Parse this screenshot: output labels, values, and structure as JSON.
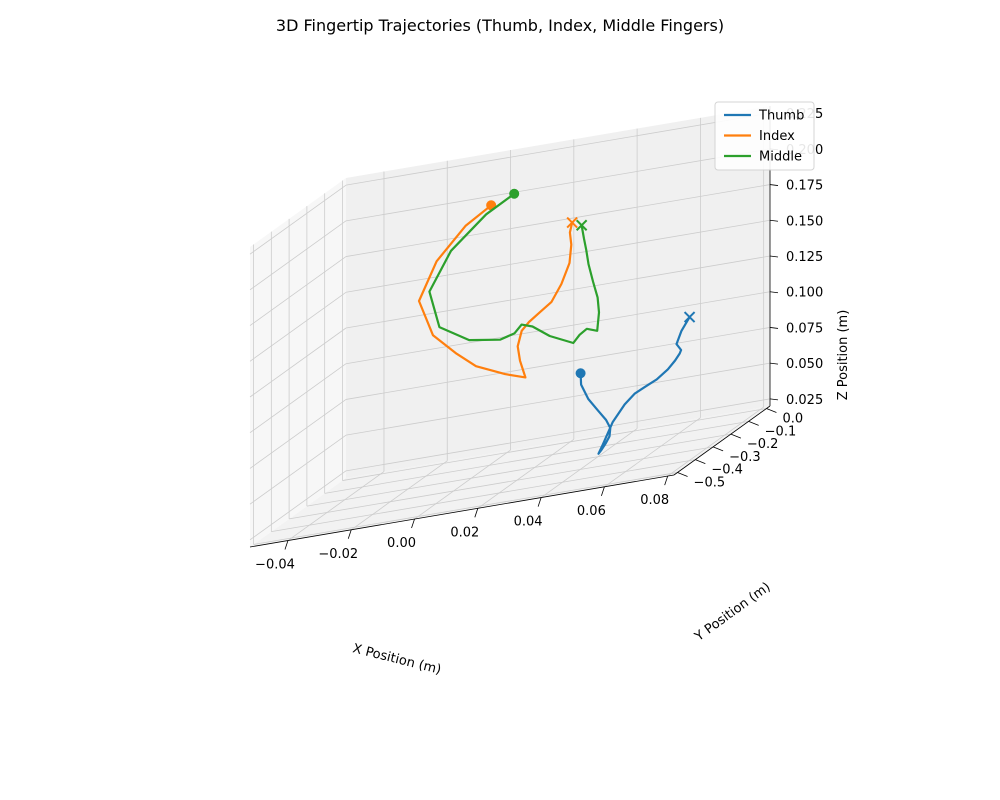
{
  "chart_data": {
    "type": "line",
    "projection": "3d",
    "title": "3D Fingertip Trajectories (Thumb, Index, Middle Fingers)",
    "xlabel": "X Position (m)",
    "ylabel": "Y Position (m)",
    "zlabel": "Z Position (m)",
    "xlim": [
      -0.052,
      0.082
    ],
    "ylim": [
      -0.52,
      0.02
    ],
    "zlim": [
      0.02,
      0.23
    ],
    "xticks": [
      -0.04,
      -0.02,
      0.0,
      0.02,
      0.04,
      0.06,
      0.08
    ],
    "xtick_labels": [
      "−0.04",
      "−0.02",
      "0.00",
      "0.02",
      "0.04",
      "0.06",
      "0.08"
    ],
    "yticks": [
      -0.5,
      -0.4,
      -0.3,
      -0.2,
      -0.1,
      0.0
    ],
    "ytick_labels": [
      "−0.5",
      "−0.4",
      "−0.3",
      "−0.2",
      "−0.1",
      "0.0"
    ],
    "zticks": [
      0.025,
      0.05,
      0.075,
      0.1,
      0.125,
      0.15,
      0.175,
      0.2,
      0.225
    ],
    "ztick_labels": [
      "0.025",
      "0.050",
      "0.075",
      "0.100",
      "0.125",
      "0.150",
      "0.175",
      "0.200",
      "0.225"
    ],
    "grid": true,
    "legend_position": "top-right",
    "series": [
      {
        "name": "Thumb",
        "color": "#1f77b4",
        "start_marker": "circle",
        "end_marker": "x",
        "points": [
          [
            0.03,
            -0.12,
            0.075
          ],
          [
            0.031,
            -0.135,
            0.068
          ],
          [
            0.034,
            -0.148,
            0.058
          ],
          [
            0.038,
            -0.165,
            0.05
          ],
          [
            0.042,
            -0.19,
            0.044
          ],
          [
            0.045,
            -0.22,
            0.04
          ],
          [
            0.047,
            -0.26,
            0.037
          ],
          [
            0.048,
            -0.3,
            0.035
          ],
          [
            0.049,
            -0.34,
            0.034
          ],
          [
            0.05,
            -0.375,
            0.034
          ],
          [
            0.052,
            -0.39,
            0.04
          ],
          [
            0.055,
            -0.385,
            0.055
          ],
          [
            0.058,
            -0.37,
            0.065
          ],
          [
            0.06,
            -0.35,
            0.07
          ],
          [
            0.062,
            -0.33,
            0.072
          ],
          [
            0.065,
            -0.315,
            0.075
          ],
          [
            0.068,
            -0.305,
            0.08
          ],
          [
            0.07,
            -0.3,
            0.085
          ],
          [
            0.072,
            -0.31,
            0.09
          ],
          [
            0.073,
            -0.32,
            0.093
          ],
          [
            0.071,
            -0.31,
            0.097
          ],
          [
            0.072,
            -0.3,
            0.105
          ],
          [
            0.074,
            -0.29,
            0.113
          ]
        ]
      },
      {
        "name": "Index",
        "color": "#ff7f0e",
        "start_marker": "circle",
        "end_marker": "x",
        "points": [
          [
            -0.005,
            0.0,
            0.195
          ],
          [
            -0.012,
            -0.02,
            0.185
          ],
          [
            -0.02,
            -0.04,
            0.165
          ],
          [
            -0.025,
            -0.05,
            0.14
          ],
          [
            -0.02,
            -0.06,
            0.115
          ],
          [
            -0.012,
            -0.07,
            0.1
          ],
          [
            -0.005,
            -0.085,
            0.09
          ],
          [
            0.005,
            -0.1,
            0.082
          ],
          [
            0.012,
            -0.11,
            0.078
          ],
          [
            0.01,
            -0.105,
            0.09
          ],
          [
            0.009,
            -0.1,
            0.1
          ],
          [
            0.01,
            -0.095,
            0.11
          ],
          [
            0.012,
            -0.09,
            0.115
          ],
          [
            0.015,
            -0.08,
            0.12
          ],
          [
            0.018,
            -0.07,
            0.125
          ],
          [
            0.02,
            -0.05,
            0.135
          ],
          [
            0.022,
            -0.04,
            0.148
          ],
          [
            0.022,
            -0.03,
            0.16
          ],
          [
            0.021,
            -0.02,
            0.168
          ],
          [
            0.022,
            -0.025,
            0.175
          ]
        ]
      },
      {
        "name": "Middle",
        "color": "#2ca02c",
        "start_marker": "circle",
        "end_marker": "x",
        "points": [
          [
            0.002,
            0.005,
            0.2
          ],
          [
            -0.006,
            -0.01,
            0.19
          ],
          [
            -0.016,
            -0.03,
            0.17
          ],
          [
            -0.022,
            -0.045,
            0.145
          ],
          [
            -0.018,
            -0.06,
            0.12
          ],
          [
            -0.008,
            -0.07,
            0.108
          ],
          [
            0.002,
            -0.075,
            0.105
          ],
          [
            0.006,
            -0.065,
            0.107
          ],
          [
            0.008,
            -0.06,
            0.112
          ],
          [
            0.012,
            -0.07,
            0.11
          ],
          [
            0.018,
            -0.08,
            0.102
          ],
          [
            0.026,
            -0.09,
            0.095
          ],
          [
            0.028,
            -0.09,
            0.1
          ],
          [
            0.03,
            -0.085,
            0.103
          ],
          [
            0.033,
            -0.08,
            0.1
          ],
          [
            0.033,
            -0.07,
            0.112
          ],
          [
            0.032,
            -0.06,
            0.122
          ],
          [
            0.03,
            -0.05,
            0.133
          ],
          [
            0.028,
            -0.04,
            0.145
          ],
          [
            0.027,
            -0.035,
            0.155
          ],
          [
            0.026,
            -0.03,
            0.163
          ],
          [
            0.025,
            -0.025,
            0.172
          ]
        ]
      }
    ]
  }
}
